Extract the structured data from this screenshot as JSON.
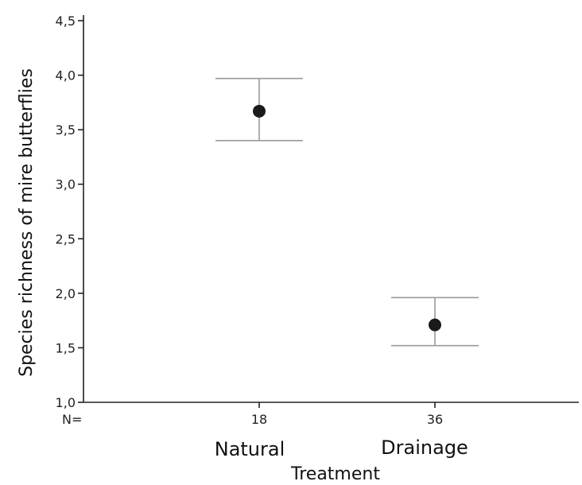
{
  "chart_data": {
    "type": "scatter",
    "title": "",
    "xlabel": "Treatment",
    "ylabel": "Species richness of mire butterflies",
    "ylim": [
      1.0,
      4.5
    ],
    "yticks": [
      "1,0",
      "1,5",
      "2,0",
      "2,5",
      "3,0",
      "3,5",
      "4,0",
      "4,5"
    ],
    "ytick_values": [
      1.0,
      1.5,
      2.0,
      2.5,
      3.0,
      3.5,
      4.0,
      4.5
    ],
    "n_prefix": "N=",
    "categories": [
      "Natural",
      "Drainage"
    ],
    "n_values": [
      "18",
      "36"
    ],
    "series": [
      {
        "values": [
          3.67,
          1.71
        ],
        "error_low": [
          3.4,
          1.52
        ],
        "error_high": [
          3.97,
          1.96
        ]
      }
    ],
    "grid": false
  }
}
